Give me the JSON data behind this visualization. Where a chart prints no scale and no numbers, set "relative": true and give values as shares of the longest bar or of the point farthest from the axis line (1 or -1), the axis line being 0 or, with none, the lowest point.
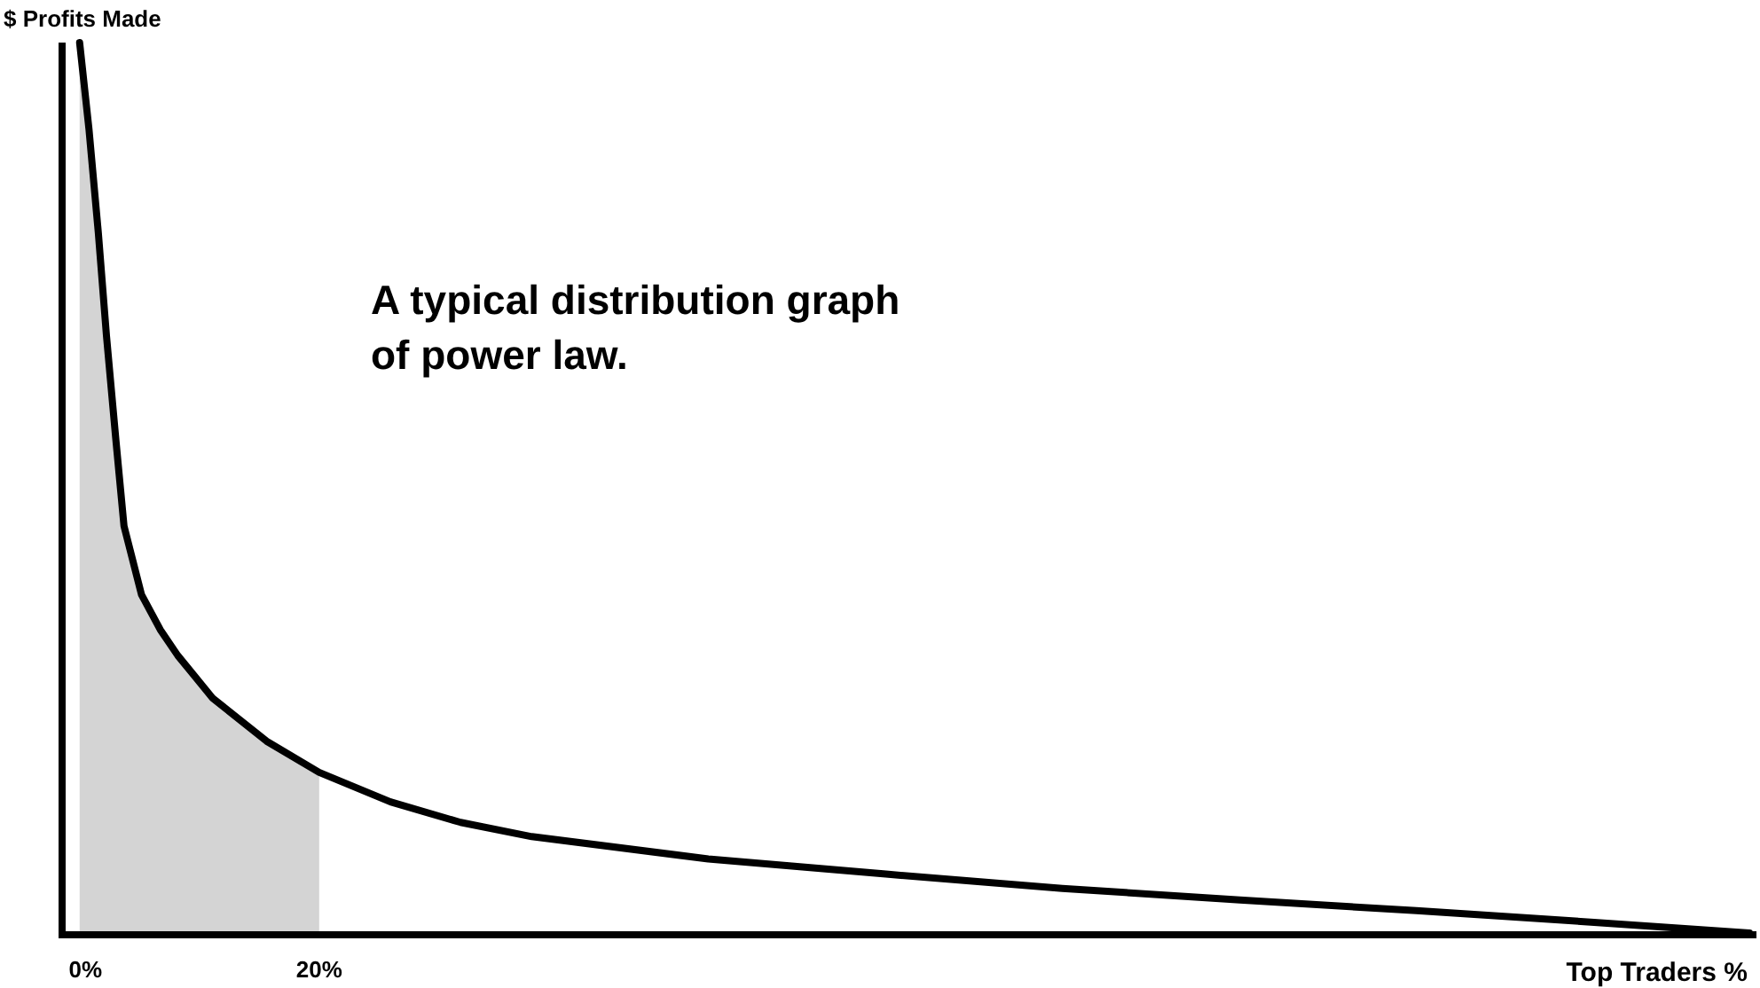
{
  "chart_data": {
    "type": "line",
    "relative": true,
    "xlabel": "Top Traders %",
    "ylabel": "$ Profits Made",
    "annotations": [
      "A typical distribution graph of power law."
    ],
    "xlim": [
      -2,
      143
    ],
    "xticks": [
      {
        "value": 0,
        "label": "0%"
      },
      {
        "value": 20,
        "label": "20%"
      }
    ],
    "bands": [
      {
        "axis": "x",
        "from": -2,
        "to": 20,
        "color": "#d4d4d4"
      }
    ],
    "marker": "none",
    "line_style": "solid",
    "grid": false,
    "series": [
      {
        "color": "#000000",
        "x": [
          -0.5,
          0.3,
          1.1,
          1.8,
          2.6,
          3.3,
          4.8,
          6.4,
          7.9,
          10.9,
          15.5,
          20,
          26.1,
          32.1,
          38.2,
          53.3,
          68.5,
          83.6,
          98.8,
          113.9,
          129.1,
          142.4
        ],
        "values": [
          1.0,
          0.903,
          0.787,
          0.671,
          0.555,
          0.458,
          0.381,
          0.342,
          0.313,
          0.265,
          0.217,
          0.182,
          0.149,
          0.126,
          0.11,
          0.085,
          0.068,
          0.052,
          0.039,
          0.027,
          0.014,
          0.002
        ]
      }
    ]
  }
}
